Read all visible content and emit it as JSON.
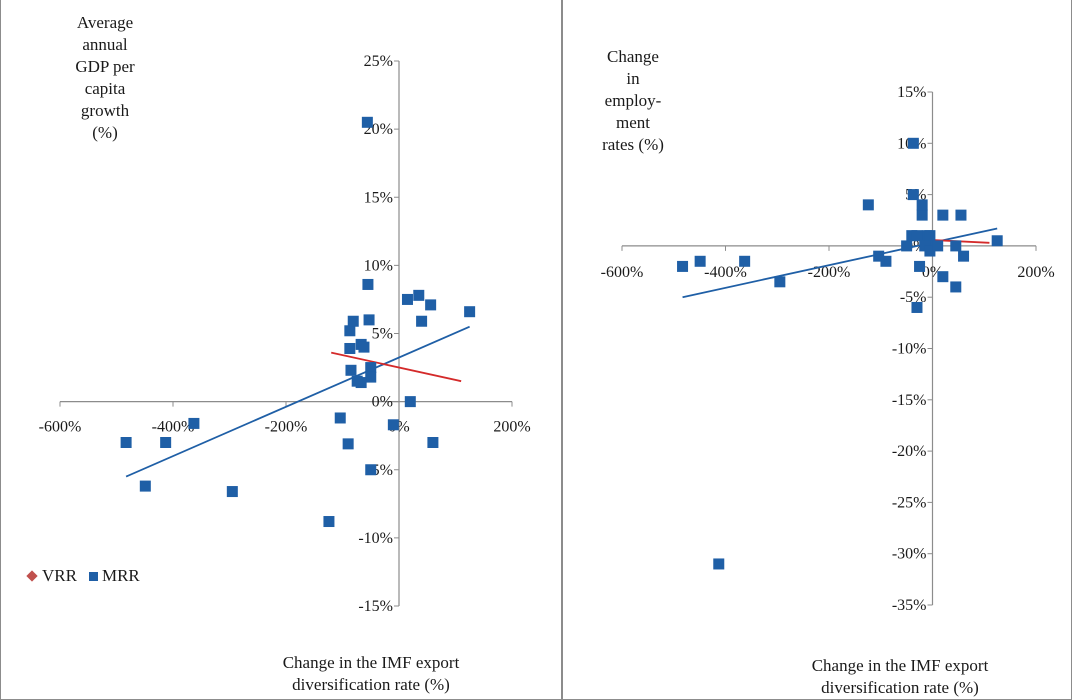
{
  "colors": {
    "marker": "#1f5fa6",
    "trend_mrr": "#1f5fa6",
    "trend_vrr": "#d42a2a",
    "axis": "#8c8c8c",
    "legend_vrr": "#c0504d"
  },
  "legend": {
    "vrr": "VRR",
    "mrr": "MRR",
    "placement": "left-middle"
  },
  "chart_data": [
    {
      "type": "scatter",
      "ylabel": "Average\nannual\nGDP per\ncapita\ngrowth\n(%)",
      "xlabel": "Change in the IMF export\ndiversification rate (%)",
      "xlim": [
        -600,
        200
      ],
      "ylim": [
        -15,
        25
      ],
      "x_ticks": [
        "-600%",
        "-400%",
        "-200%",
        "0%",
        "200%"
      ],
      "y_ticks": [
        "25%",
        "20%",
        "15%",
        "10%",
        "5%",
        "0%",
        "-5%",
        "-10%",
        "-15%"
      ],
      "series": [
        {
          "name": "MRR",
          "points": [
            [
              -483,
              -3.0
            ],
            [
              -449,
              -6.2
            ],
            [
              -413,
              -3.0
            ],
            [
              -363,
              -1.6
            ],
            [
              -295,
              -6.6
            ],
            [
              -124,
              -8.8
            ],
            [
              -90,
              -3.1
            ],
            [
              -104,
              -1.2
            ],
            [
              -56,
              20.5
            ],
            [
              -50,
              -5.0
            ],
            [
              -55,
              8.6
            ],
            [
              -53,
              6.0
            ],
            [
              -87,
              5.2
            ],
            [
              -81,
              5.9
            ],
            [
              -87,
              3.9
            ],
            [
              -67,
              4.2
            ],
            [
              -62,
              4.0
            ],
            [
              -50,
              2.5
            ],
            [
              -50,
              1.8
            ],
            [
              -67,
              1.4
            ],
            [
              -74,
              1.5
            ],
            [
              -85,
              2.3
            ],
            [
              -10,
              -1.7
            ],
            [
              15,
              7.5
            ],
            [
              35,
              7.8
            ],
            [
              40,
              5.9
            ],
            [
              56,
              7.1
            ],
            [
              60,
              -3.0
            ],
            [
              125,
              6.6
            ],
            [
              20,
              0.0
            ]
          ]
        }
      ],
      "trendlines": [
        {
          "name": "MRR",
          "x": [
            -483,
            125
          ],
          "y": [
            -5.5,
            5.5
          ]
        },
        {
          "name": "VRR",
          "x": [
            -120,
            110
          ],
          "y": [
            3.6,
            1.5
          ]
        }
      ]
    },
    {
      "type": "scatter",
      "ylabel": "Change\nin\nemploy-\nment\nrates (%)",
      "xlabel": "Change in the IMF export\ndiversification rate (%)",
      "xlim": [
        -600,
        200
      ],
      "ylim": [
        -35,
        15
      ],
      "x_ticks": [
        "-600%",
        "-400%",
        "-200%",
        "0%",
        "200%"
      ],
      "y_ticks": [
        "15%",
        "10%",
        "5%",
        "0%",
        "-5%",
        "-10%",
        "-15%",
        "-20%",
        "-25%",
        "-30%",
        "-35%"
      ],
      "series": [
        {
          "name": "MRR",
          "points": [
            [
              -483,
              -2.0
            ],
            [
              -449,
              -1.5
            ],
            [
              -413,
              -31.0
            ],
            [
              -363,
              -1.5
            ],
            [
              -295,
              -3.5
            ],
            [
              -124,
              4.0
            ],
            [
              -90,
              -1.5
            ],
            [
              -104,
              -1.0
            ],
            [
              -37,
              5.0
            ],
            [
              -37,
              10.0
            ],
            [
              -20,
              3.0
            ],
            [
              -20,
              4.0
            ],
            [
              -10,
              1.0
            ],
            [
              -5,
              1.0
            ],
            [
              -5,
              0.0
            ],
            [
              -50,
              0.0
            ],
            [
              -40,
              1.0
            ],
            [
              -30,
              1.0
            ],
            [
              -15,
              0.0
            ],
            [
              -5,
              -0.5
            ],
            [
              10,
              0.0
            ],
            [
              20,
              3.0
            ],
            [
              20,
              -3.0
            ],
            [
              45,
              -4.0
            ],
            [
              55,
              3.0
            ],
            [
              60,
              -1.0
            ],
            [
              45,
              0.0
            ],
            [
              125,
              0.5
            ],
            [
              -25,
              -2.0
            ],
            [
              -30,
              -6.0
            ]
          ]
        }
      ],
      "trendlines": [
        {
          "name": "MRR",
          "x": [
            -483,
            125
          ],
          "y": [
            -5.0,
            1.7
          ]
        },
        {
          "name": "VRR",
          "x": [
            -50,
            110
          ],
          "y": [
            0.7,
            0.3
          ]
        }
      ]
    }
  ]
}
